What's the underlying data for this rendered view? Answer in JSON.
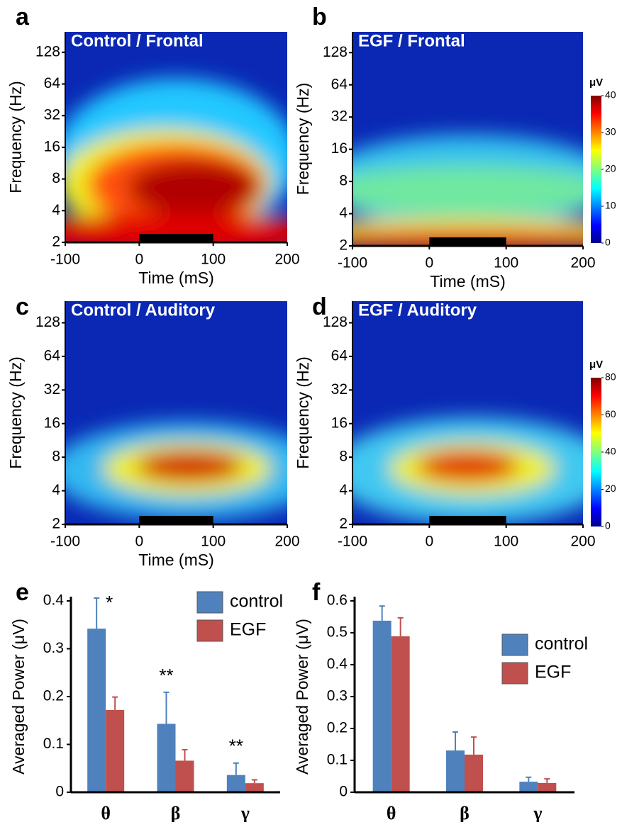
{
  "chart_data": [
    {
      "type": "heatmap",
      "panel": "a",
      "title": "Control / Frontal",
      "xlabel": "Time (mS)",
      "ylabel": "Frequency (Hz)",
      "xlim": [
        -100,
        200
      ],
      "xticks": [
        -100,
        0,
        100,
        200
      ],
      "ylim": [
        2,
        200
      ],
      "yticks": [
        2,
        4,
        8,
        16,
        32,
        64,
        128
      ],
      "log_y": true,
      "stimulus": [
        0,
        100
      ]
    },
    {
      "type": "heatmap",
      "panel": "b",
      "title": "EGF / Frontal",
      "xlabel": "Time (mS)",
      "ylabel": "Frequency (Hz)",
      "xlim": [
        -100,
        200
      ],
      "xticks": [
        -100,
        0,
        100,
        200
      ],
      "ylim": [
        2,
        200
      ],
      "yticks": [
        2,
        4,
        8,
        16,
        32,
        64,
        128
      ],
      "log_y": true,
      "stimulus": [
        0,
        100
      ],
      "colorbar": {
        "label": "μV",
        "lim": [
          0,
          40
        ],
        "ticks": [
          0,
          10,
          20,
          30,
          40
        ]
      }
    },
    {
      "type": "heatmap",
      "panel": "c",
      "title": "Control / Auditory",
      "xlabel": "Time (mS)",
      "ylabel": "Frequency (Hz)",
      "xlim": [
        -100,
        200
      ],
      "xticks": [
        -100,
        0,
        100,
        200
      ],
      "ylim": [
        2,
        200
      ],
      "yticks": [
        2,
        4,
        8,
        16,
        32,
        64,
        128
      ],
      "log_y": true,
      "stimulus": [
        0,
        100
      ]
    },
    {
      "type": "heatmap",
      "panel": "d",
      "title": "EGF / Auditory",
      "ylabel": "Frequency (Hz)",
      "xlim": [
        -100,
        200
      ],
      "xticks": [
        -100,
        0,
        100,
        200
      ],
      "ylim": [
        2,
        200
      ],
      "yticks": [
        2,
        4,
        8,
        16,
        32,
        64,
        128
      ],
      "log_y": true,
      "stimulus": [
        0,
        100
      ],
      "colorbar": {
        "label": "μV",
        "lim": [
          0,
          80
        ],
        "ticks": [
          0,
          20,
          40,
          60,
          80
        ]
      }
    },
    {
      "type": "bar",
      "panel": "e",
      "ylabel": "Averaged Power (μV)",
      "categories": [
        "θ",
        "β",
        "γ"
      ],
      "series": [
        {
          "name": "control",
          "color": "#4f81bd",
          "values": [
            0.342,
            0.143,
            0.036
          ],
          "errors": [
            0.064,
            0.066,
            0.025
          ]
        },
        {
          "name": "EGF",
          "color": "#c0504d",
          "values": [
            0.172,
            0.066,
            0.019
          ],
          "errors": [
            0.027,
            0.023,
            0.007
          ]
        }
      ],
      "annotations": [
        "*",
        "**",
        "**"
      ],
      "ylim": [
        0,
        0.4
      ],
      "yticks": [
        0,
        0.1,
        0.2,
        0.3,
        0.4
      ]
    },
    {
      "type": "bar",
      "panel": "f",
      "ylabel": "Averaged Power (μV)",
      "categories": [
        "θ",
        "β",
        "γ"
      ],
      "series": [
        {
          "name": "control",
          "color": "#4f81bd",
          "values": [
            0.538,
            0.131,
            0.033
          ],
          "errors": [
            0.046,
            0.058,
            0.014
          ]
        },
        {
          "name": "EGF",
          "color": "#c0504d",
          "values": [
            0.489,
            0.118,
            0.029
          ],
          "errors": [
            0.058,
            0.055,
            0.013
          ]
        }
      ],
      "ylim": [
        0,
        0.6
      ],
      "yticks": [
        0,
        0.1,
        0.2,
        0.3,
        0.4,
        0.5,
        0.6
      ]
    }
  ]
}
